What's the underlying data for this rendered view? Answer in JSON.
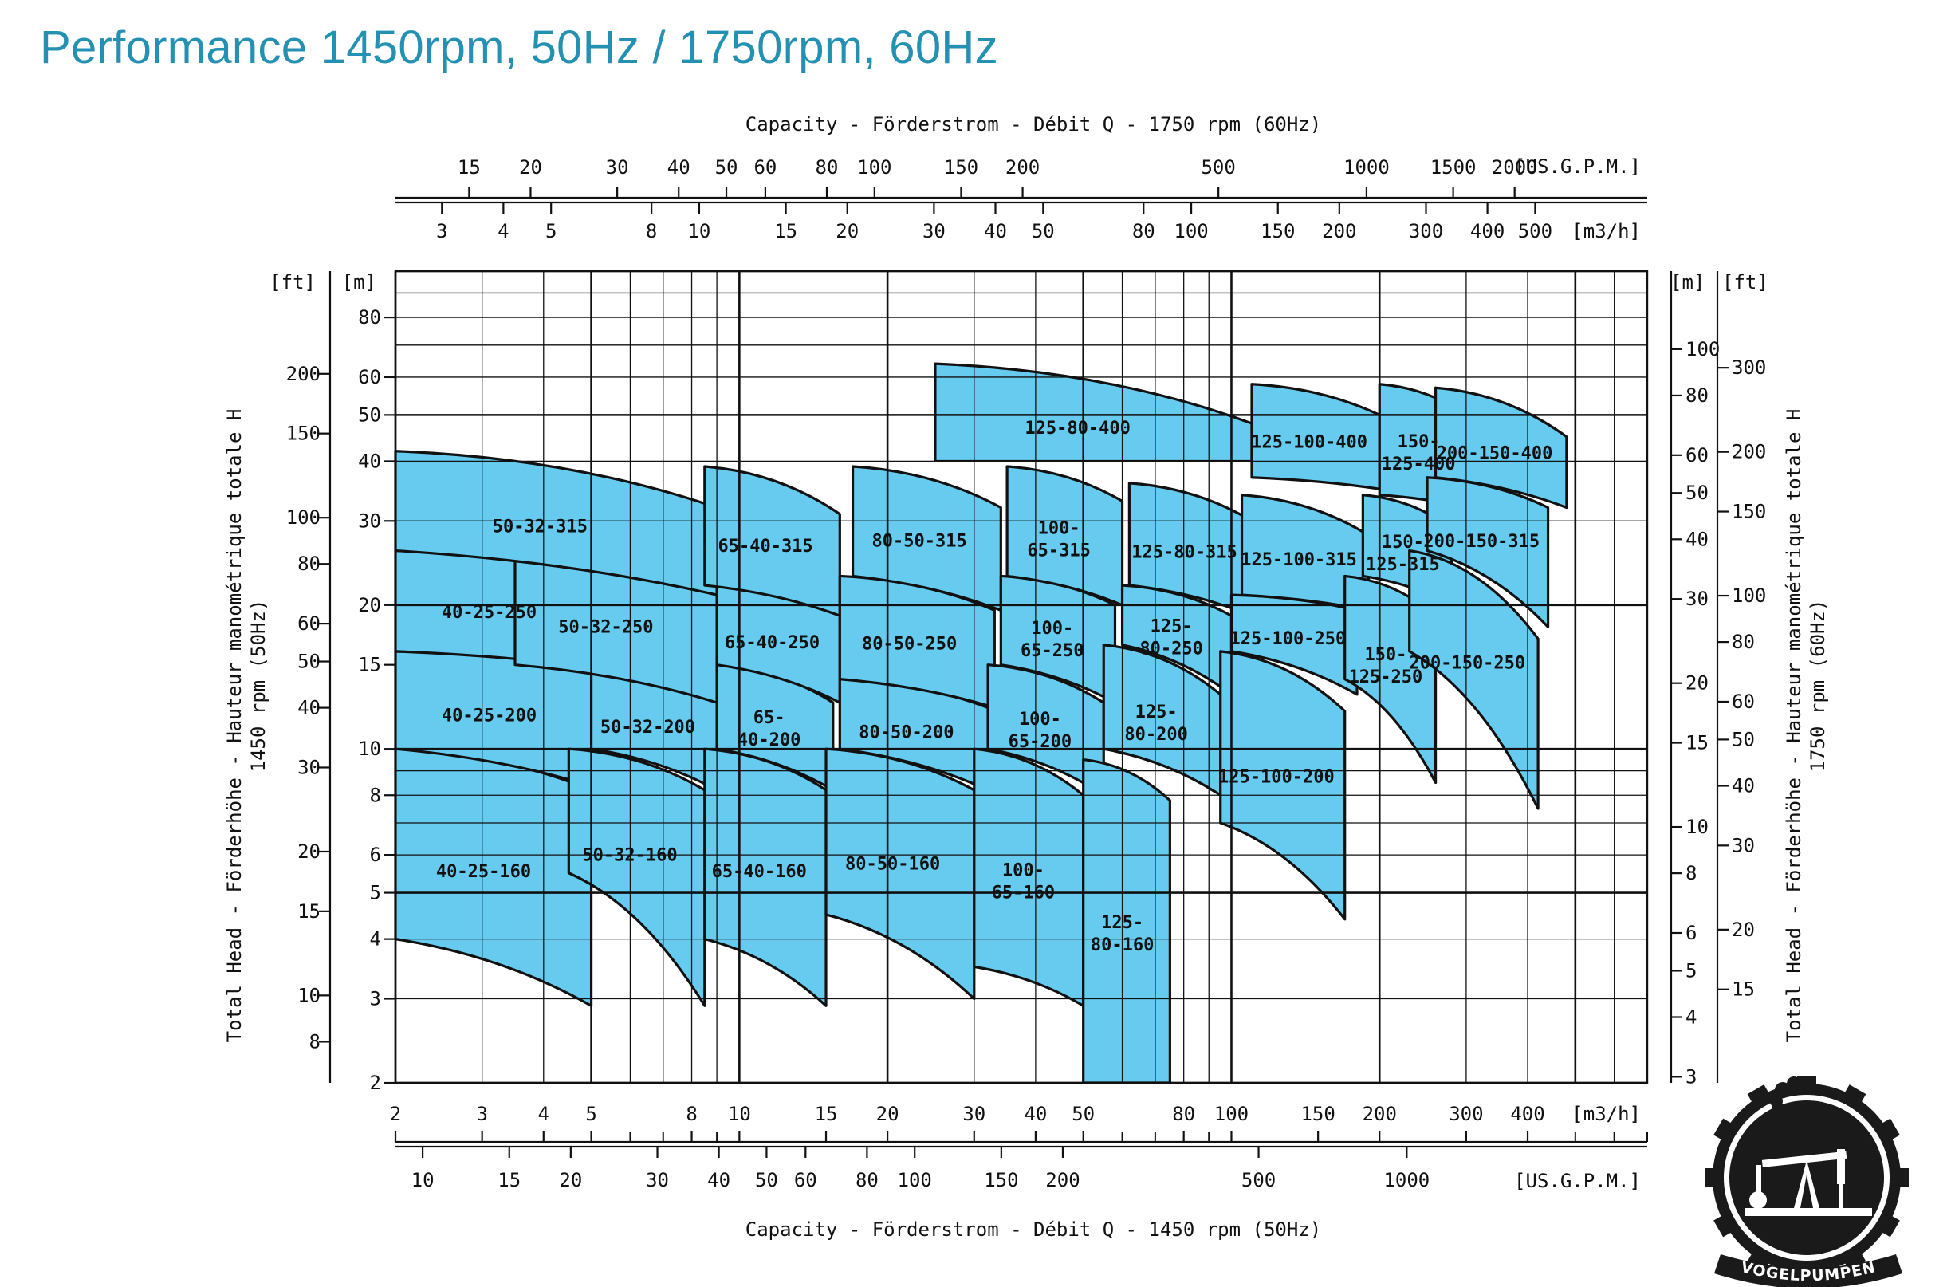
{
  "page": {
    "title": "Performance 1450rpm, 50Hz / 1750rpm, 60Hz"
  },
  "colors": {
    "title": "#2591b2",
    "curve_fill": "#66cbee",
    "grid": "#111111",
    "logo_fg": "#1a1a1a"
  },
  "logo": {
    "icon": "pump-jack-gear-icon",
    "text": "VOGELPUMPEN"
  },
  "chart_data": {
    "type": "area",
    "title": "",
    "scale": "log-log",
    "grid": true,
    "axes": {
      "top_title": "Capacity - Förderstrom - Débit  Q  -  1750 rpm (60Hz)",
      "bottom_title": "Capacity - Förderstrom - Débit  Q  -  1450 rpm (50Hz)",
      "left_title_1": "Total Head - Förderhöhe - Hauteur manométrique totale  H",
      "left_title_2": "1450 rpm (50Hz)",
      "right_title_1": "Total Head - Förderhöhe - Hauteur manométrique totale  H",
      "right_title_2": "1750 rpm (60Hz)",
      "bottom_m3h": {
        "unit": "[m3/h]",
        "range": [
          2,
          700
        ],
        "ticks": [
          2,
          3,
          4,
          5,
          8,
          10,
          15,
          20,
          30,
          40,
          50,
          80,
          100,
          150,
          200,
          300,
          400
        ],
        "minor": [
          6,
          7,
          9,
          60,
          70,
          90,
          500,
          600,
          700
        ]
      },
      "bottom_usgpm": {
        "unit": "[US.G.P.M.]",
        "ticks": [
          10,
          15,
          20,
          30,
          40,
          50,
          60,
          80,
          100,
          150,
          200,
          500,
          1000
        ]
      },
      "top_m3h": {
        "unit": "[m3/h]",
        "ticks": [
          3,
          4,
          5,
          8,
          10,
          15,
          20,
          30,
          40,
          50,
          80,
          100,
          150,
          200,
          300,
          400,
          500
        ]
      },
      "top_usgpm": {
        "unit": "[US.G.P.M.]",
        "ticks": [
          15,
          20,
          30,
          40,
          50,
          60,
          80,
          100,
          150,
          200,
          500,
          1000,
          1500,
          2000
        ]
      },
      "left_m": {
        "unit": "[m]",
        "range": [
          2,
          100
        ],
        "ticks": [
          2,
          3,
          4,
          5,
          6,
          8,
          10,
          15,
          20,
          30,
          40,
          50,
          60,
          80
        ]
      },
      "left_ft": {
        "unit": "[ft]",
        "ticks": [
          8,
          10,
          15,
          20,
          30,
          40,
          50,
          60,
          80,
          100,
          150,
          200
        ]
      },
      "right_m": {
        "unit": "[m]",
        "ticks": [
          3,
          4,
          5,
          6,
          8,
          10,
          15,
          20,
          30,
          40,
          50,
          60,
          80,
          100
        ]
      },
      "right_ft": {
        "unit": "[ft]",
        "ticks": [
          15,
          20,
          30,
          40,
          50,
          60,
          80,
          100,
          150,
          200,
          300
        ]
      }
    },
    "series": [
      {
        "name": "40-25-160",
        "q_range": [
          2,
          5
        ],
        "head_left": [
          4.0,
          10.0
        ],
        "head_right": [
          2.9,
          8.2
        ]
      },
      {
        "name": "40-25-200",
        "q_range": [
          2,
          5.3
        ],
        "head_left": [
          10.0,
          16.0
        ],
        "head_right": [
          8.2,
          14.7
        ]
      },
      {
        "name": "40-25-250",
        "q_range": [
          2,
          5.3
        ],
        "head_left": [
          16.0,
          26.0
        ],
        "head_right": [
          14.7,
          23.0
        ]
      },
      {
        "name": "50-32-160",
        "q_range": [
          4.5,
          8.5
        ],
        "head_left": [
          5.5,
          10.0
        ],
        "head_right": [
          2.9,
          8.2
        ]
      },
      {
        "name": "50-32-200",
        "q_range": [
          5.0,
          9.0
        ],
        "head_left": [
          10.0,
          15.0
        ],
        "head_right": [
          8.2,
          12.5
        ]
      },
      {
        "name": "50-32-250",
        "q_range": [
          3.5,
          9.0
        ],
        "head_left": [
          15.0,
          27.0
        ],
        "head_right": [
          12.5,
          21.0
        ]
      },
      {
        "name": "50-32-315",
        "q_range": [
          2,
          9.0
        ],
        "head_left": [
          26.0,
          42.0
        ],
        "head_right": [
          21.0,
          32.0
        ]
      },
      {
        "name": "65-40-160",
        "q_range": [
          8.5,
          15
        ],
        "head_left": [
          4.0,
          10.0
        ],
        "head_right": [
          2.9,
          8.2
        ]
      },
      {
        "name": "65-40-200",
        "q_range": [
          9.0,
          15.5
        ],
        "head_left": [
          10.0,
          15.0
        ],
        "head_right": [
          8.2,
          12.5
        ]
      },
      {
        "name": "65-40-250",
        "q_range": [
          9.0,
          16
        ],
        "head_left": [
          15.0,
          22.0
        ],
        "head_right": [
          12.5,
          19.0
        ]
      },
      {
        "name": "65-40-315",
        "q_range": [
          8.5,
          16
        ],
        "head_left": [
          22.0,
          39.0
        ],
        "head_right": [
          19.0,
          31.0
        ]
      },
      {
        "name": "80-50-160",
        "q_range": [
          15,
          30
        ],
        "head_left": [
          4.5,
          10.0
        ],
        "head_right": [
          3.0,
          8.2
        ]
      },
      {
        "name": "80-50-200",
        "q_range": [
          16,
          32
        ],
        "head_left": [
          10.0,
          14.0
        ],
        "head_right": [
          8.2,
          12.2
        ]
      },
      {
        "name": "80-50-250",
        "q_range": [
          16,
          33
        ],
        "head_left": [
          14.0,
          23.0
        ],
        "head_right": [
          12.2,
          19.5
        ]
      },
      {
        "name": "80-50-315",
        "q_range": [
          17,
          34
        ],
        "head_left": [
          23.0,
          39.0
        ],
        "head_right": [
          19.5,
          32.0
        ]
      },
      {
        "name": "100-65-160",
        "q_range": [
          30,
          50
        ],
        "head_left": [
          3.5,
          10.0
        ],
        "head_right": [
          2.9,
          8.0
        ]
      },
      {
        "name": "100-65-200",
        "q_range": [
          32,
          55
        ],
        "head_left": [
          10.0,
          15.0
        ],
        "head_right": [
          8.0,
          12.5
        ]
      },
      {
        "name": "100-65-250",
        "q_range": [
          34,
          58
        ],
        "head_left": [
          15.0,
          23.0
        ],
        "head_right": [
          12.5,
          20.0
        ]
      },
      {
        "name": "100-65-315",
        "q_range": [
          35,
          60
        ],
        "head_left": [
          23.0,
          39.0
        ],
        "head_right": [
          20.0,
          33.0
        ]
      },
      {
        "name": "125-80-160",
        "q_range": [
          50,
          75
        ],
        "head_left": [
          2.0,
          9.5
        ],
        "head_right": [
          2.0,
          7.8
        ]
      },
      {
        "name": "125-80-200",
        "q_range": [
          55,
          95
        ],
        "head_left": [
          10.0,
          16.5
        ],
        "head_right": [
          8.0,
          13.0
        ]
      },
      {
        "name": "125-80-250",
        "q_range": [
          60,
          100
        ],
        "head_left": [
          16.5,
          22.0
        ],
        "head_right": [
          13.0,
          19.0
        ]
      },
      {
        "name": "125-80-315",
        "q_range": [
          62,
          110
        ],
        "head_left": [
          22.0,
          36.0
        ],
        "head_right": [
          19.0,
          30.0
        ]
      },
      {
        "name": "125-80-400",
        "q_range": [
          25,
          110
        ],
        "head_left": [
          40.0,
          64.0
        ],
        "head_right": [
          40.0,
          48.0
        ]
      },
      {
        "name": "125-100-200",
        "q_range": [
          95,
          170
        ],
        "head_left": [
          7.0,
          16.0
        ],
        "head_right": [
          4.4,
          12.0
        ]
      },
      {
        "name": "125-100-250",
        "q_range": [
          100,
          180
        ],
        "head_left": [
          16.0,
          21.0
        ],
        "head_right": [
          13.0,
          19.5
        ]
      },
      {
        "name": "125-100-315",
        "q_range": [
          105,
          190
        ],
        "head_left": [
          21.0,
          34.0
        ],
        "head_right": [
          19.5,
          28.0
        ]
      },
      {
        "name": "125-100-400",
        "q_range": [
          110,
          200
        ],
        "head_left": [
          37.0,
          58.0
        ],
        "head_right": [
          35.0,
          50.0
        ]
      },
      {
        "name": "150-125-250",
        "q_range": [
          170,
          260
        ],
        "head_left": [
          14.0,
          23.0
        ],
        "head_right": [
          8.5,
          19.0
        ]
      },
      {
        "name": "150-125-315",
        "q_range": [
          185,
          280
        ],
        "head_left": [
          23.0,
          34.0
        ],
        "head_right": [
          20.0,
          29.0
        ]
      },
      {
        "name": "150-125-400",
        "q_range": [
          200,
          300
        ],
        "head_left": [
          34.0,
          58.0
        ],
        "head_right": [
          32.0,
          50.0
        ]
      },
      {
        "name": "200-150-250",
        "q_range": [
          230,
          420
        ],
        "head_left": [
          16.0,
          26.0
        ],
        "head_right": [
          7.5,
          17.0
        ]
      },
      {
        "name": "200-150-315",
        "q_range": [
          250,
          440
        ],
        "head_left": [
          26.0,
          37.0
        ],
        "head_right": [
          18.0,
          32.0
        ]
      },
      {
        "name": "200-150-400",
        "q_range": [
          260,
          480
        ],
        "head_left": [
          37.0,
          57.0
        ],
        "head_right": [
          32.0,
          45.0
        ]
      }
    ]
  }
}
